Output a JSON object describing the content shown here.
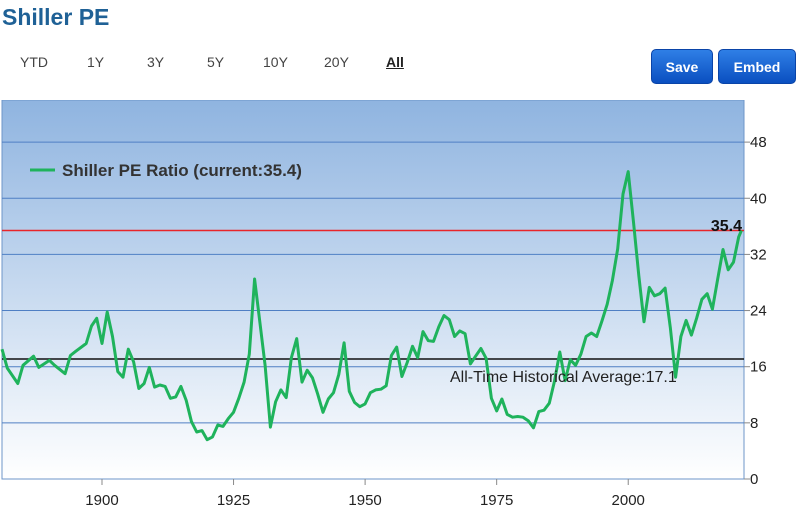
{
  "header": {
    "title": "Shiller PE"
  },
  "range_tabs": [
    {
      "label": "YTD",
      "active": false
    },
    {
      "label": "1Y",
      "active": false
    },
    {
      "label": "3Y",
      "active": false
    },
    {
      "label": "5Y",
      "active": false
    },
    {
      "label": "10Y",
      "active": false
    },
    {
      "label": "20Y",
      "active": false
    },
    {
      "label": "All",
      "active": true
    }
  ],
  "toolbar": {
    "save_label": "Save",
    "embed_label": "Embed"
  },
  "colors": {
    "line": "#1fb35c",
    "current": "#e8252a",
    "average": "#111111",
    "plot_top": "#8fb4e0",
    "plot_bottom": "#ffffff",
    "title": "#1f6196"
  },
  "chart_data": {
    "type": "line",
    "title": "",
    "xlabel": "",
    "ylabel": "",
    "xlim": [
      1881,
      2022
    ],
    "ylim": [
      0,
      54
    ],
    "x_ticks": [
      "1900",
      "1925",
      "1950",
      "1975",
      "2000"
    ],
    "y_ticks": [
      "0",
      "8",
      "16",
      "24",
      "32",
      "40",
      "48"
    ],
    "y_axis_side": "right",
    "grid": true,
    "legend_position": "top-left",
    "series": [
      {
        "name": "Shiller PE Ratio (current:35.4)",
        "x": [
          1881,
          1882,
          1884,
          1885,
          1887,
          1888,
          1890,
          1891,
          1893,
          1894,
          1895,
          1897,
          1898,
          1899,
          1900,
          1901,
          1902,
          1903,
          1904,
          1905,
          1906,
          1907,
          1908,
          1909,
          1910,
          1911,
          1912,
          1913,
          1914,
          1915,
          1916,
          1917,
          1918,
          1919,
          1920,
          1921,
          1922,
          1923,
          1924,
          1925,
          1926,
          1927,
          1928,
          1929,
          1930,
          1931,
          1932,
          1933,
          1934,
          1935,
          1936,
          1937,
          1938,
          1939,
          1940,
          1941,
          1942,
          1943,
          1944,
          1945,
          1946,
          1947,
          1948,
          1949,
          1950,
          1951,
          1952,
          1953,
          1954,
          1955,
          1956,
          1957,
          1958,
          1959,
          1960,
          1961,
          1962,
          1963,
          1964,
          1965,
          1966,
          1967,
          1968,
          1969,
          1970,
          1971,
          1972,
          1973,
          1974,
          1975,
          1976,
          1977,
          1978,
          1979,
          1980,
          1981,
          1982,
          1983,
          1984,
          1985,
          1986,
          1987,
          1988,
          1989,
          1990,
          1991,
          1992,
          1993,
          1994,
          1995,
          1996,
          1997,
          1998,
          1999,
          2000,
          2001,
          2002,
          2003,
          2004,
          2005,
          2006,
          2007,
          2008,
          2009,
          2010,
          2011,
          2012,
          2013,
          2014,
          2015,
          2016,
          2017,
          2018,
          2019,
          2020,
          2021,
          2021.5
        ],
        "values": [
          18.5,
          15.8,
          13.6,
          16.2,
          17.5,
          15.9,
          16.9,
          16.2,
          15.0,
          17.6,
          18.2,
          19.3,
          21.8,
          22.9,
          19.3,
          23.8,
          20.3,
          15.3,
          14.5,
          18.5,
          16.7,
          12.9,
          13.6,
          15.9,
          13.1,
          13.4,
          13.2,
          11.5,
          11.7,
          13.2,
          11.2,
          8.2,
          6.7,
          6.9,
          5.6,
          6.0,
          7.7,
          7.5,
          8.6,
          9.5,
          11.5,
          13.8,
          17.8,
          28.5,
          22.3,
          16.2,
          7.4,
          11.0,
          12.7,
          11.6,
          17.3,
          20.0,
          13.8,
          15.5,
          14.4,
          12.1,
          9.5,
          11.4,
          12.3,
          14.9,
          19.4,
          12.5,
          10.9,
          10.3,
          10.7,
          12.3,
          12.7,
          12.8,
          13.3,
          17.6,
          18.8,
          14.6,
          16.6,
          18.9,
          17.3,
          21.0,
          19.7,
          19.6,
          21.7,
          23.3,
          22.7,
          20.3,
          21.1,
          20.7,
          16.4,
          17.5,
          18.6,
          17.2,
          11.5,
          9.7,
          11.4,
          9.2,
          8.8,
          8.9,
          8.8,
          8.3,
          7.3,
          9.6,
          9.8,
          10.8,
          14.0,
          18.1,
          14.0,
          17.0,
          16.2,
          17.8,
          20.3,
          20.8,
          20.3,
          22.5,
          24.9,
          28.3,
          32.8,
          40.6,
          43.8,
          36.6,
          29.0,
          22.4,
          27.3,
          26.1,
          26.4,
          27.2,
          21.6,
          14.5,
          20.3,
          22.6,
          20.5,
          22.9,
          25.6,
          26.4,
          24.2,
          28.5,
          32.7,
          29.8,
          30.9,
          34.5,
          35.4
        ]
      }
    ],
    "current_line": {
      "value": 35.4,
      "label": "35.4"
    },
    "average_line": {
      "value": 17.1,
      "label": "All-Time Historical Average:17.1"
    }
  }
}
